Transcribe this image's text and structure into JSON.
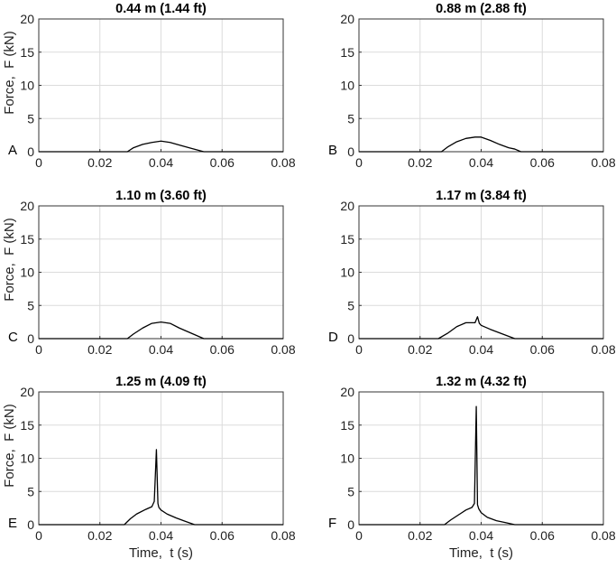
{
  "chart_data": [
    {
      "type": "line",
      "panel": "A",
      "title": "0.44 m (1.44 ft)",
      "ylabel": "Force,  F (kN)",
      "xlabel": "",
      "xlim": [
        0,
        0.08
      ],
      "ylim": [
        0,
        20
      ],
      "grid": true,
      "xticks": [
        "0",
        "0.02",
        "0.04",
        "0.06",
        "0.08"
      ],
      "yticks": [
        "0",
        "5",
        "10",
        "15",
        "20"
      ],
      "series": [
        {
          "x": [
            0,
            0.029,
            0.031,
            0.034,
            0.037,
            0.04,
            0.043,
            0.046,
            0.05,
            0.054,
            0.08
          ],
          "y": [
            0,
            0,
            0.6,
            1.1,
            1.4,
            1.6,
            1.4,
            1.0,
            0.5,
            0,
            0
          ]
        }
      ]
    },
    {
      "type": "line",
      "panel": "B",
      "title": "0.88 m (2.88 ft)",
      "ylabel": "",
      "xlabel": "",
      "xlim": [
        0,
        0.08
      ],
      "ylim": [
        0,
        20
      ],
      "grid": true,
      "xticks": [
        "0",
        "0.02",
        "0.04",
        "0.06",
        "0.08"
      ],
      "yticks": [
        "0",
        "5",
        "10",
        "15",
        "20"
      ],
      "series": [
        {
          "x": [
            0,
            0.027,
            0.029,
            0.032,
            0.035,
            0.038,
            0.04,
            0.043,
            0.046,
            0.049,
            0.051,
            0.053,
            0.08
          ],
          "y": [
            0,
            0,
            0.7,
            1.5,
            2.0,
            2.2,
            2.2,
            1.7,
            1.1,
            0.6,
            0.4,
            0,
            0
          ]
        }
      ]
    },
    {
      "type": "line",
      "panel": "C",
      "title": "1.10 m (3.60 ft)",
      "ylabel": "Force,  F (kN)",
      "xlabel": "",
      "xlim": [
        0,
        0.08
      ],
      "ylim": [
        0,
        20
      ],
      "grid": true,
      "xticks": [
        "0",
        "0.02",
        "0.04",
        "0.06",
        "0.08"
      ],
      "yticks": [
        "0",
        "5",
        "10",
        "15",
        "20"
      ],
      "series": [
        {
          "x": [
            0,
            0.029,
            0.031,
            0.034,
            0.037,
            0.04,
            0.043,
            0.046,
            0.05,
            0.054,
            0.08
          ],
          "y": [
            0,
            0,
            0.7,
            1.6,
            2.3,
            2.5,
            2.3,
            1.6,
            0.8,
            0,
            0
          ]
        }
      ]
    },
    {
      "type": "line",
      "panel": "D",
      "title": "1.17 m (3.84 ft)",
      "ylabel": "",
      "xlabel": "",
      "xlim": [
        0,
        0.08
      ],
      "ylim": [
        0,
        20
      ],
      "grid": true,
      "xticks": [
        "0",
        "0.02",
        "0.04",
        "0.06",
        "0.08"
      ],
      "yticks": [
        "0",
        "5",
        "10",
        "15",
        "20"
      ],
      "series": [
        {
          "x": [
            0,
            0.026,
            0.029,
            0.032,
            0.035,
            0.038,
            0.0388,
            0.0394,
            0.04,
            0.043,
            0.047,
            0.051,
            0.08
          ],
          "y": [
            0,
            0,
            0.8,
            1.8,
            2.4,
            2.4,
            3.3,
            2.3,
            2.0,
            1.4,
            0.7,
            0,
            0
          ]
        }
      ]
    },
    {
      "type": "line",
      "panel": "E",
      "title": "1.25 m (4.09 ft)",
      "ylabel": "Force,  F (kN)",
      "xlabel": "Time,  t (s)",
      "xlim": [
        0,
        0.08
      ],
      "ylim": [
        0,
        20
      ],
      "grid": true,
      "xticks": [
        "0",
        "0.02",
        "0.04",
        "0.06",
        "0.08"
      ],
      "yticks": [
        "0",
        "5",
        "10",
        "15",
        "20"
      ],
      "series": [
        {
          "x": [
            0,
            0.028,
            0.03,
            0.032,
            0.035,
            0.037,
            0.0378,
            0.0385,
            0.039,
            0.0393,
            0.04,
            0.042,
            0.045,
            0.048,
            0.051,
            0.08
          ],
          "y": [
            0,
            0,
            0.9,
            1.6,
            2.3,
            2.7,
            3.5,
            11.3,
            3.2,
            2.6,
            2.2,
            1.6,
            1.0,
            0.5,
            0,
            0
          ]
        }
      ]
    },
    {
      "type": "line",
      "panel": "F",
      "title": "1.32 m (4.32 ft)",
      "ylabel": "",
      "xlabel": "Time,  t (s)",
      "xlim": [
        0,
        0.08
      ],
      "ylim": [
        0,
        20
      ],
      "grid": true,
      "xticks": [
        "0",
        "0.02",
        "0.04",
        "0.06",
        "0.08"
      ],
      "yticks": [
        "0",
        "5",
        "10",
        "15",
        "20"
      ],
      "series": [
        {
          "x": [
            0,
            0.028,
            0.03,
            0.033,
            0.035,
            0.037,
            0.0378,
            0.0384,
            0.0388,
            0.0392,
            0.04,
            0.042,
            0.045,
            0.048,
            0.051,
            0.08
          ],
          "y": [
            0,
            0,
            0.7,
            1.6,
            2.2,
            2.6,
            3.2,
            17.8,
            3.0,
            2.4,
            1.8,
            1.1,
            0.6,
            0.3,
            0,
            0
          ]
        }
      ]
    }
  ]
}
